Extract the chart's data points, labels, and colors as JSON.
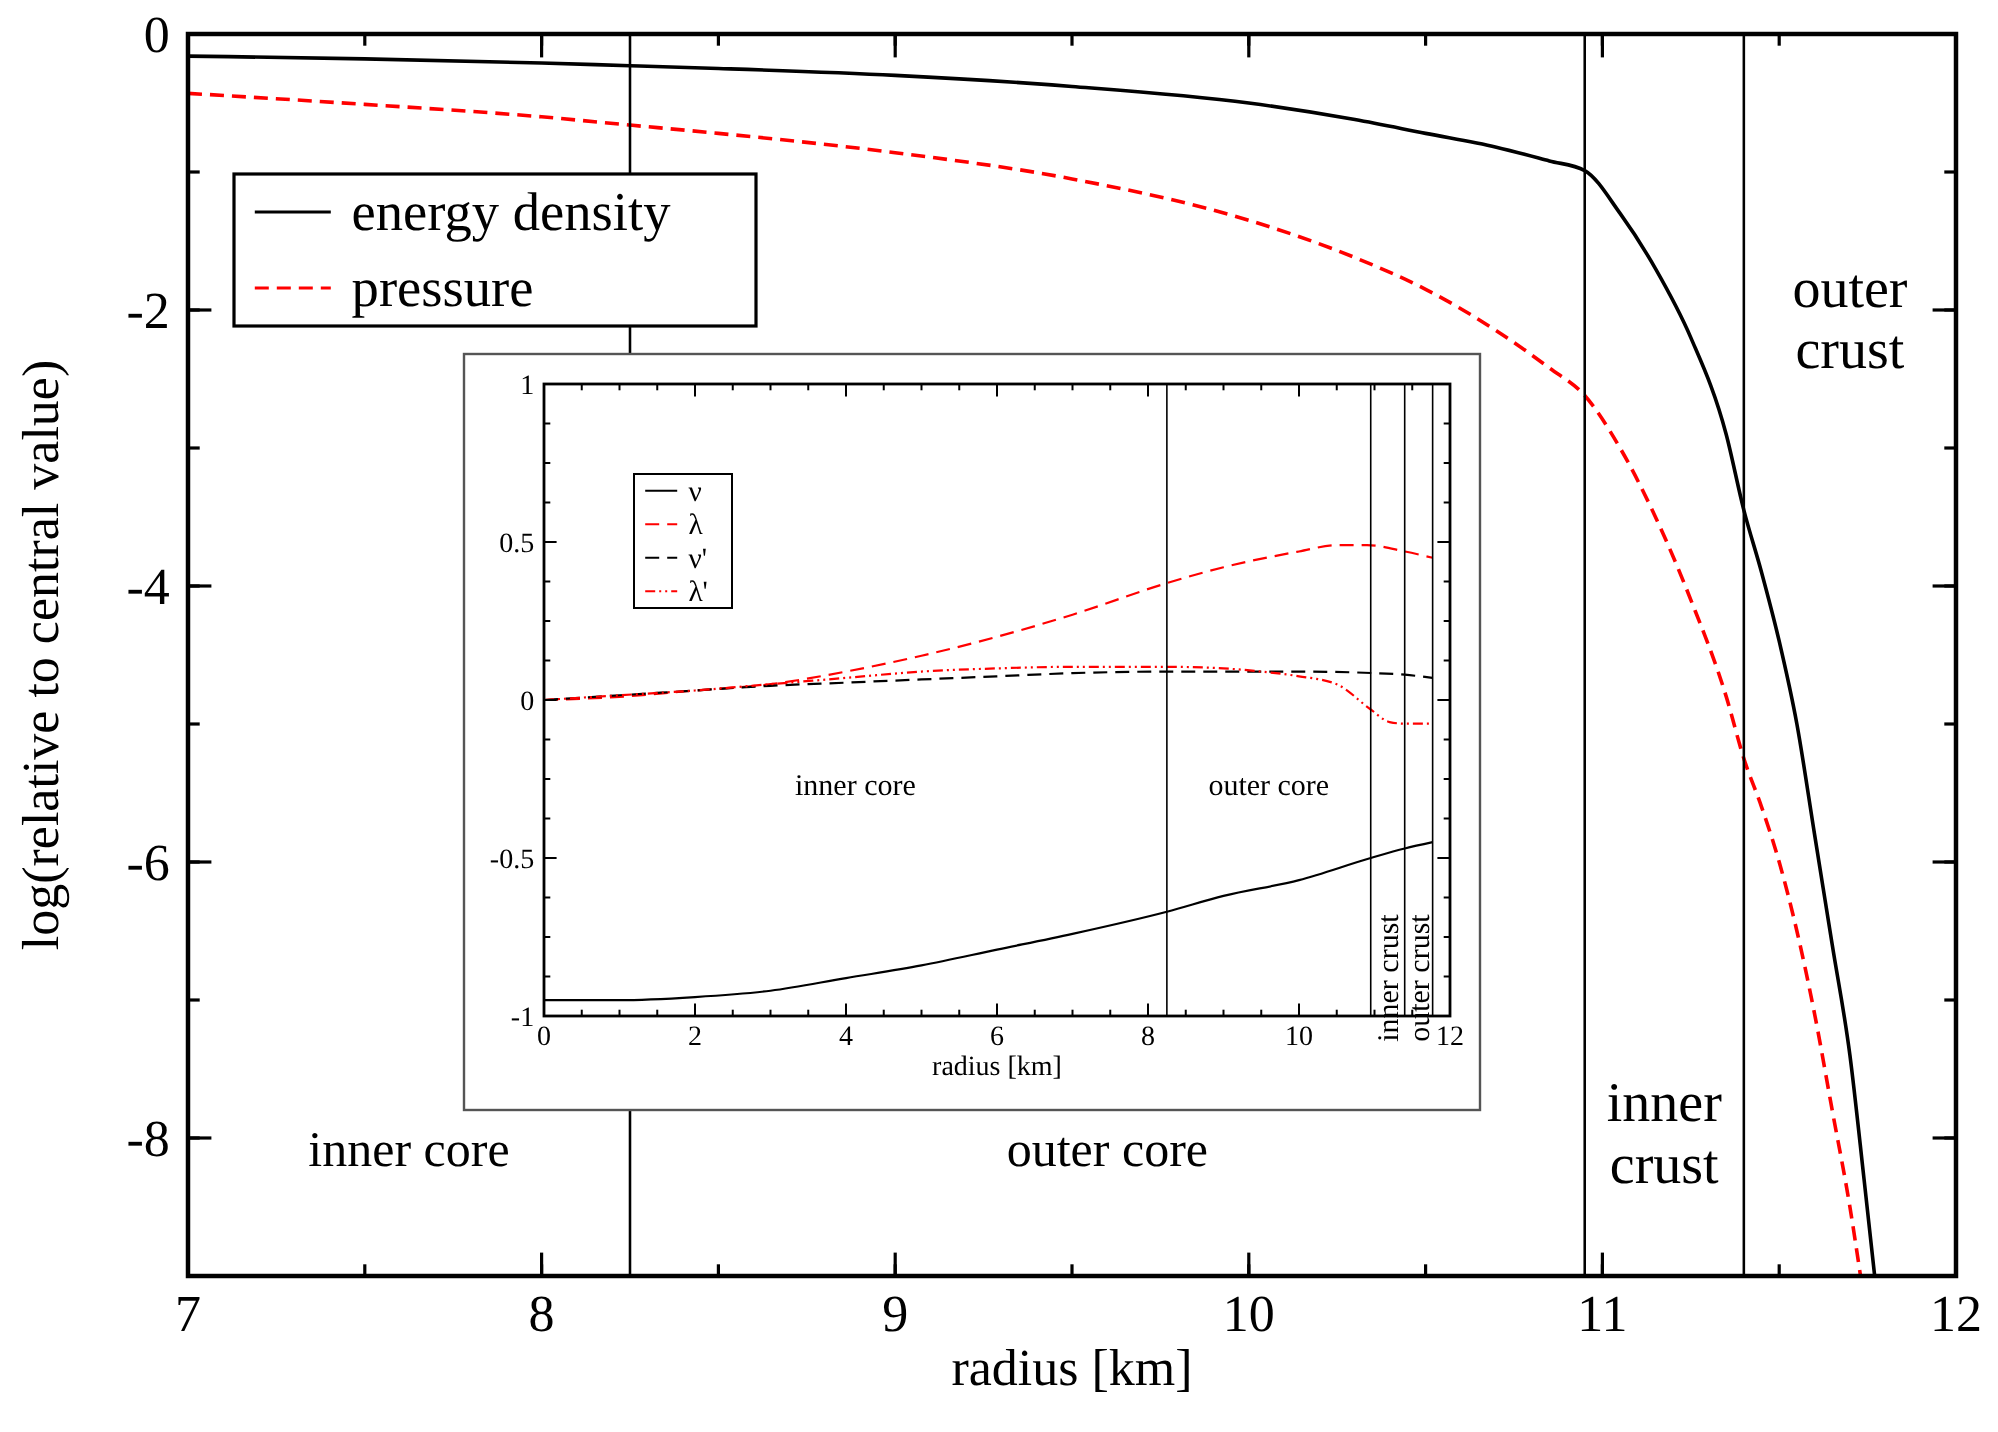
{
  "chart_data": [
    {
      "type": "line",
      "xlabel": "radius [km]",
      "ylabel": "log(relative to central value)",
      "xlim": [
        7,
        12
      ],
      "ylim": [
        -9,
        0
      ],
      "xticks": [
        7,
        8,
        9,
        10,
        11,
        12
      ],
      "yticks": [
        -8,
        -6,
        -4,
        -2,
        0
      ],
      "legend": "top left",
      "grid": false,
      "marker": "none",
      "series": [
        {
          "name": "energy density",
          "color": "#000000",
          "line_style": "solid",
          "x": [
            7,
            7.5,
            8,
            8.25,
            8.5,
            9,
            9.5,
            10,
            10.3,
            10.5,
            10.7,
            10.85,
            10.95,
            11.05,
            11.15,
            11.25,
            11.35,
            11.4,
            11.45,
            11.5,
            11.55,
            11.6,
            11.65,
            11.7,
            11.74,
            11.77
          ],
          "values": [
            -0.16,
            -0.18,
            -0.21,
            -0.23,
            -0.25,
            -0.3,
            -0.38,
            -0.5,
            -0.62,
            -0.72,
            -0.82,
            -0.92,
            -0.99,
            -1.3,
            -1.7,
            -2.2,
            -2.9,
            -3.45,
            -3.9,
            -4.4,
            -5.0,
            -5.8,
            -6.6,
            -7.4,
            -8.3,
            -9
          ]
        },
        {
          "name": "pressure",
          "color": "#ff0000",
          "line_style": "dashed",
          "x": [
            7,
            7.5,
            8,
            8.25,
            8.5,
            9,
            9.5,
            10,
            10.3,
            10.5,
            10.7,
            10.85,
            10.95,
            11.05,
            11.15,
            11.25,
            11.35,
            11.4,
            11.45,
            11.5,
            11.55,
            11.6,
            11.65,
            11.7,
            11.73
          ],
          "values": [
            -0.43,
            -0.51,
            -0.6,
            -0.66,
            -0.72,
            -0.86,
            -1.05,
            -1.35,
            -1.62,
            -1.85,
            -2.15,
            -2.42,
            -2.62,
            -3.0,
            -3.5,
            -4.1,
            -4.8,
            -5.25,
            -5.6,
            -6.0,
            -6.5,
            -7.1,
            -7.8,
            -8.5,
            -9
          ]
        }
      ],
      "ref_lines": [
        {
          "axis": "x",
          "value": 8.25,
          "color": "#000000"
        },
        {
          "axis": "x",
          "value": 10.95,
          "color": "#000000"
        },
        {
          "axis": "x",
          "value": 11.4,
          "color": "#000000"
        }
      ],
      "annotations": [
        "inner core",
        "outer core",
        "inner crust",
        "outer crust"
      ]
    },
    {
      "type": "line",
      "xlabel": "radius [km]",
      "xlim": [
        0,
        12
      ],
      "ylim": [
        -1,
        1
      ],
      "xticks": [
        0,
        2,
        4,
        6,
        8,
        10,
        12
      ],
      "yticks": [
        -1,
        -0.5,
        0,
        0.5,
        1
      ],
      "legend": "top left",
      "grid": false,
      "marker": "none",
      "series": [
        {
          "name": "ν",
          "color": "#000000",
          "line_style": "solid",
          "x": [
            0,
            1,
            2,
            3,
            4,
            5,
            6,
            7,
            8.25,
            9,
            10,
            10.95,
            11.4,
            11.77
          ],
          "values": [
            -0.95,
            -0.95,
            -0.94,
            -0.92,
            -0.88,
            -0.84,
            -0.79,
            -0.74,
            -0.67,
            -0.62,
            -0.57,
            -0.5,
            -0.47,
            -0.45
          ]
        },
        {
          "name": "λ",
          "color": "#ff0000",
          "line_style": "dashed",
          "x": [
            0,
            1,
            2,
            3,
            4,
            5,
            6,
            7,
            8.25,
            9,
            10,
            10.5,
            10.9,
            11.4,
            11.77
          ],
          "values": [
            0,
            0.01,
            0.03,
            0.05,
            0.09,
            0.14,
            0.2,
            0.27,
            0.37,
            0.42,
            0.47,
            0.49,
            0.49,
            0.47,
            0.45
          ]
        },
        {
          "name": "ν'",
          "color": "#000000",
          "line_style": "dashed",
          "x": [
            0,
            1,
            2,
            3,
            4,
            5,
            6,
            7,
            8.25,
            9,
            10,
            11,
            11.4,
            11.77
          ],
          "values": [
            0,
            0.015,
            0.03,
            0.045,
            0.055,
            0.065,
            0.075,
            0.085,
            0.09,
            0.09,
            0.09,
            0.085,
            0.08,
            0.07
          ]
        },
        {
          "name": "λ'",
          "color": "#ff0000",
          "line_style": "dotted",
          "x": [
            0,
            1,
            2,
            3,
            4,
            5,
            6,
            7,
            8.25,
            9,
            9.5,
            10,
            10.5,
            10.95,
            11.2,
            11.4,
            11.77
          ],
          "values": [
            0,
            0.015,
            0.03,
            0.05,
            0.07,
            0.09,
            0.1,
            0.105,
            0.105,
            0.1,
            0.09,
            0.075,
            0.05,
            -0.03,
            -0.07,
            -0.075,
            -0.075
          ]
        }
      ],
      "ref_lines": [
        {
          "axis": "x",
          "value": 8.25,
          "color": "#000000"
        },
        {
          "axis": "x",
          "value": 10.95,
          "color": "#000000"
        },
        {
          "axis": "x",
          "value": 11.4,
          "color": "#000000"
        },
        {
          "axis": "x",
          "value": 11.77,
          "color": "#000000"
        }
      ],
      "annotations": [
        "inner core",
        "outer core",
        "inner crust",
        "outer crust"
      ]
    }
  ]
}
